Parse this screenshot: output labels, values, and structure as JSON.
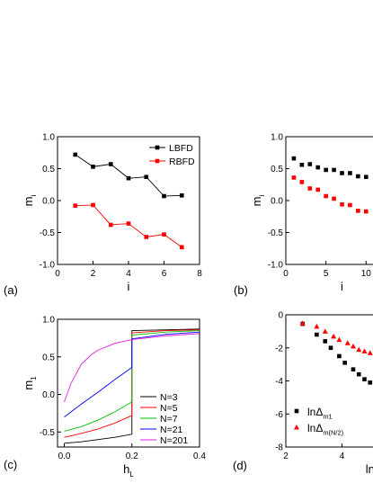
{
  "chart_data": [
    {
      "panel_label": "(a)",
      "type": "line",
      "xlabel": "i",
      "ylabel": "m",
      "ylabel_sub": "i",
      "xlim": [
        0,
        8
      ],
      "ylim": [
        -1.0,
        1.0
      ],
      "xticks": [
        "0",
        "2",
        "4",
        "6",
        "8"
      ],
      "yticks": [
        "-1.0",
        "-0.5",
        "0.0",
        "0.5",
        "1.0"
      ],
      "legend": "top-right",
      "series": [
        {
          "name": "LBFD",
          "color": "#000000",
          "marker": "square",
          "x": [
            1,
            2,
            3,
            4,
            5,
            6,
            7
          ],
          "y": [
            0.72,
            0.53,
            0.57,
            0.35,
            0.37,
            0.07,
            0.08
          ]
        },
        {
          "name": "RBFD",
          "color": "#ff0000",
          "marker": "square",
          "x": [
            1,
            2,
            3,
            4,
            5,
            6,
            7
          ],
          "y": [
            -0.08,
            -0.07,
            -0.38,
            -0.36,
            -0.57,
            -0.53,
            -0.73
          ]
        }
      ]
    },
    {
      "panel_label": "(b)",
      "type": "scatter",
      "xlabel": "i",
      "ylabel": "m",
      "ylabel_sub": "i",
      "xlim": [
        0,
        14
      ],
      "ylim": [
        -1.0,
        1.0
      ],
      "xticks": [
        "0",
        "5",
        "10"
      ],
      "yticks": [
        "-1.0",
        "-0.5",
        "0.0",
        "0.5",
        "1.0"
      ],
      "series": [
        {
          "color": "#000000",
          "marker": "square",
          "x": [
            1,
            2,
            3,
            4,
            5,
            6,
            7,
            8,
            9,
            10,
            11,
            12,
            13
          ],
          "y": [
            0.66,
            0.56,
            0.57,
            0.52,
            0.48,
            0.48,
            0.43,
            0.43,
            0.38,
            0.37,
            0.31,
            0.26,
            0.24
          ]
        },
        {
          "color": "#ff0000",
          "marker": "square",
          "x": [
            1,
            2,
            3,
            4,
            5,
            6,
            7,
            8,
            9,
            10,
            11,
            12
          ],
          "y": [
            0.36,
            0.29,
            0.19,
            0.17,
            0.07,
            0.03,
            -0.06,
            -0.07,
            -0.16,
            -0.17,
            -0.26,
            -0.27
          ]
        }
      ]
    },
    {
      "panel_label": "(c)",
      "type": "line",
      "xlabel": "h",
      "xlabel_sub": "L",
      "ylabel": "m",
      "ylabel_sub": "1",
      "xlim": [
        -0.02,
        0.4
      ],
      "ylim": [
        -0.7,
        1.0
      ],
      "xticks": [
        "0.0",
        "0.2",
        "0.4"
      ],
      "yticks": [
        "-0.5",
        "0.0",
        "0.5",
        "1.0"
      ],
      "legend": "bottom-right",
      "series": [
        {
          "name": "N=3",
          "color": "#000000",
          "x": [
            0,
            0.05,
            0.1,
            0.15,
            0.2,
            0.2,
            0.3,
            0.4
          ],
          "y": [
            -0.65,
            -0.63,
            -0.6,
            -0.57,
            -0.53,
            0.85,
            0.86,
            0.87
          ]
        },
        {
          "name": "N=5",
          "color": "#ff0000",
          "x": [
            0,
            0.05,
            0.1,
            0.15,
            0.2,
            0.2,
            0.3,
            0.4
          ],
          "y": [
            -0.57,
            -0.52,
            -0.46,
            -0.38,
            -0.28,
            0.82,
            0.85,
            0.86
          ]
        },
        {
          "name": "N=7",
          "color": "#00c000",
          "x": [
            0,
            0.05,
            0.1,
            0.15,
            0.2,
            0.2,
            0.3,
            0.4
          ],
          "y": [
            -0.49,
            -0.43,
            -0.34,
            -0.23,
            -0.1,
            0.79,
            0.83,
            0.85
          ]
        },
        {
          "name": "N=21",
          "color": "#0000ff",
          "x": [
            0,
            0.05,
            0.1,
            0.15,
            0.2,
            0.2,
            0.3,
            0.4
          ],
          "y": [
            -0.3,
            -0.13,
            0.03,
            0.2,
            0.36,
            0.74,
            0.8,
            0.83
          ]
        },
        {
          "name": "N=201",
          "color": "#e020e0",
          "x": [
            0,
            0.02,
            0.05,
            0.08,
            0.1,
            0.15,
            0.2,
            0.3,
            0.4
          ],
          "y": [
            -0.1,
            0.15,
            0.4,
            0.53,
            0.59,
            0.68,
            0.73,
            0.78,
            0.81
          ]
        }
      ]
    },
    {
      "panel_label": "(d)",
      "type": "scatter",
      "xlabel": "lnN",
      "xlim": [
        2,
        6
      ],
      "ylim": [
        -8,
        0
      ],
      "xticks": [
        "2",
        "4"
      ],
      "yticks": [
        "-8",
        "-6",
        "-4",
        "-2",
        "0"
      ],
      "legend": "bottom-left",
      "series": [
        {
          "name": "lnΔ",
          "name_sub": "m1",
          "color": "#000000",
          "marker": "square",
          "x": [
            2.6,
            3.1,
            3.4,
            3.6,
            3.9,
            4.1,
            4.4,
            4.6,
            4.8,
            5.0
          ],
          "y": [
            -0.55,
            -1.2,
            -1.6,
            -2.0,
            -2.5,
            -2.9,
            -3.3,
            -3.6,
            -3.9,
            -4.1
          ]
        },
        {
          "name": "lnΔ",
          "name_sub": "m(N/2)",
          "color": "#ff0000",
          "marker": "triangle",
          "x": [
            2.6,
            3.1,
            3.4,
            3.7,
            3.9,
            4.2,
            4.4,
            4.6,
            4.8,
            5.0
          ],
          "y": [
            -0.5,
            -0.7,
            -1.0,
            -1.3,
            -1.5,
            -1.7,
            -1.9,
            -2.1,
            -2.2,
            -2.3
          ]
        }
      ]
    }
  ]
}
